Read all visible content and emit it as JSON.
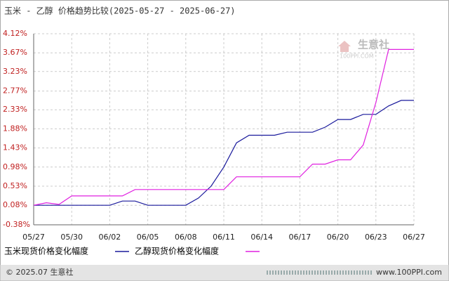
{
  "chart_data": {
    "type": "line",
    "title": "玉米 - 乙醇 价格趋势比较(2025-05-27 - 2025-06-27)",
    "watermark": "生意社",
    "watermark_sub": "100PPI.COM",
    "footer_left": "© 2025.07 生意社",
    "footer_right": "www.100PPI.com",
    "categories": [
      "05/27",
      null,
      null,
      "05/30",
      null,
      null,
      "06/02",
      null,
      null,
      "06/05",
      null,
      null,
      "06/08",
      null,
      null,
      "06/11",
      null,
      null,
      "06/14",
      null,
      null,
      "06/17",
      null,
      null,
      "06/20",
      null,
      null,
      "06/23",
      null,
      null,
      "06/27"
    ],
    "series": [
      {
        "name": "玉米现货价格变化幅度",
        "color": "#1a1a9c",
        "values": [
          0.08,
          0.08,
          0.08,
          0.08,
          0.08,
          0.08,
          0.08,
          0.18,
          0.18,
          0.08,
          0.08,
          0.08,
          0.08,
          0.25,
          0.53,
          0.98,
          1.55,
          1.73,
          1.73,
          1.73,
          1.8,
          1.8,
          1.8,
          1.92,
          2.1,
          2.1,
          2.22,
          2.22,
          2.42,
          2.55,
          2.55
        ]
      },
      {
        "name": "乙醇现货价格变化幅度",
        "color": "#e020e0",
        "values": [
          0.08,
          0.14,
          0.1,
          0.3,
          0.3,
          0.3,
          0.3,
          0.3,
          0.45,
          0.45,
          0.45,
          0.45,
          0.45,
          0.45,
          0.45,
          0.45,
          0.75,
          0.75,
          0.75,
          0.75,
          0.75,
          0.75,
          1.05,
          1.05,
          1.15,
          1.15,
          1.5,
          2.5,
          3.75,
          3.75,
          3.75
        ]
      }
    ],
    "ylim": [
      -0.38,
      4.12
    ],
    "yticks": [
      {
        "value": -0.38,
        "label": "-0.38%"
      },
      {
        "value": 0.08,
        "label": "0.08%"
      },
      {
        "value": 0.53,
        "label": "0.53%"
      },
      {
        "value": 0.98,
        "label": "0.98%"
      },
      {
        "value": 1.43,
        "label": "1.43%"
      },
      {
        "value": 1.88,
        "label": "1.88%"
      },
      {
        "value": 2.33,
        "label": "2.33%"
      },
      {
        "value": 2.77,
        "label": "2.77%"
      },
      {
        "value": 3.23,
        "label": "3.23%"
      },
      {
        "value": 3.67,
        "label": "3.67%"
      },
      {
        "value": 4.12,
        "label": "4.12%"
      }
    ],
    "grid": true
  }
}
